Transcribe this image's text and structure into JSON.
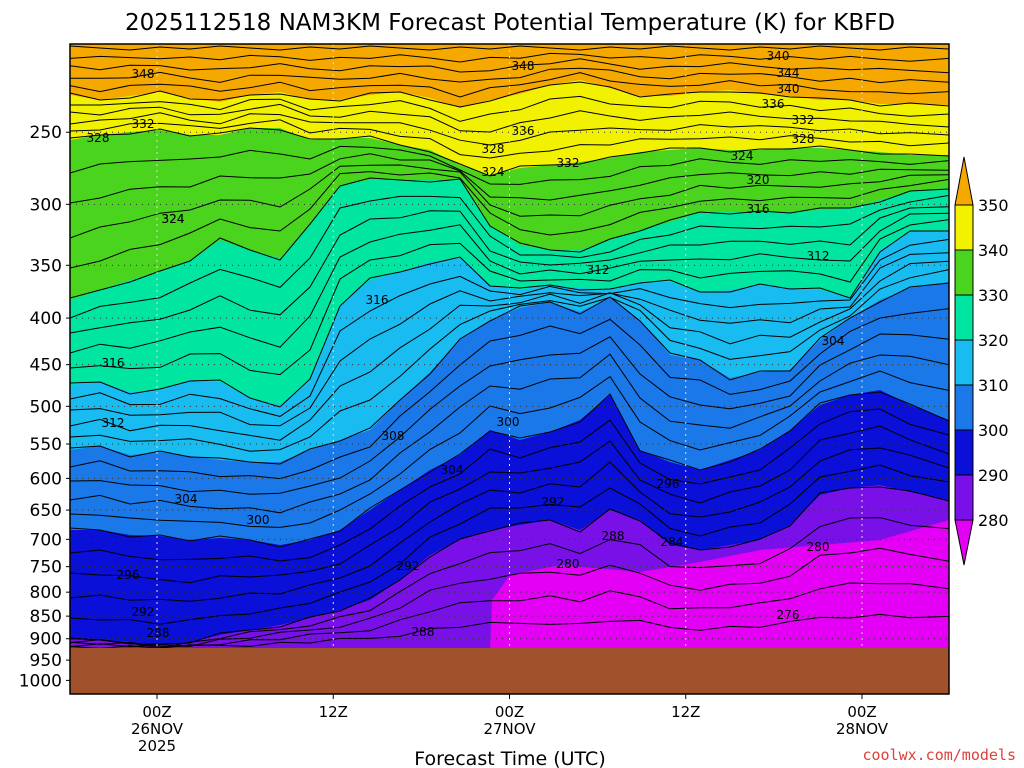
{
  "chart_data": {
    "type": "heatmap",
    "title": "2025112518 NAM3KM Forecast Potential Temperature (K) for KBFD",
    "xlabel": "Forecast Time (UTC)",
    "ylabel": "",
    "credit": "coolwx.com/models",
    "y_ticks": [
      "250",
      "300",
      "350",
      "400",
      "450",
      "500",
      "550",
      "600",
      "650",
      "700",
      "750",
      "800",
      "850",
      "900",
      "950",
      "1000"
    ],
    "y_values": [
      250,
      300,
      350,
      400,
      450,
      500,
      550,
      600,
      650,
      700,
      750,
      800,
      850,
      900,
      950,
      1000
    ],
    "x_ticks": [
      {
        "line1": "00Z",
        "line2": "26NOV",
        "line3": "2025",
        "hour": 6
      },
      {
        "line1": "12Z",
        "line2": "",
        "line3": "",
        "hour": 18
      },
      {
        "line1": "00Z",
        "line2": "27NOV",
        "line3": "",
        "hour": 30
      },
      {
        "line1": "12Z",
        "line2": "",
        "line3": "",
        "hour": 42
      },
      {
        "line1": "00Z",
        "line2": "28NOV",
        "line3": "",
        "hour": 54
      }
    ],
    "x_range_hours": [
      0,
      60
    ],
    "colorbar": {
      "labels": [
        "350",
        "340",
        "330",
        "320",
        "310",
        "300",
        "290",
        "280"
      ],
      "bins": [
        {
          "lo": 340,
          "hi": 350,
          "color": "#f2f200"
        },
        {
          "lo": 330,
          "hi": 340,
          "color": "#4bd41e"
        },
        {
          "lo": 320,
          "hi": 330,
          "color": "#00e6a0"
        },
        {
          "lo": 310,
          "hi": 320,
          "color": "#18bcf0"
        },
        {
          "lo": 300,
          "hi": 310,
          "color": "#1a78e8"
        },
        {
          "lo": 290,
          "hi": 300,
          "color": "#0a10d8"
        },
        {
          "lo": 280,
          "hi": 290,
          "color": "#7a10e8"
        }
      ],
      "above_color": "#f5a800",
      "below_color": "#e400f4"
    },
    "contour_labels": [
      "348",
      "348",
      "340",
      "344",
      "340",
      "336",
      "332",
      "336",
      "332",
      "328",
      "328",
      "328",
      "324",
      "324",
      "332",
      "324",
      "320",
      "316",
      "324",
      "312",
      "312",
      "316",
      "304",
      "316",
      "312",
      "308",
      "300",
      "304",
      "304",
      "296",
      "292",
      "300",
      "288",
      "284",
      "280",
      "296",
      "280",
      "292",
      "276",
      "292",
      "288",
      "288"
    ],
    "surface_color": "#a0522d"
  }
}
